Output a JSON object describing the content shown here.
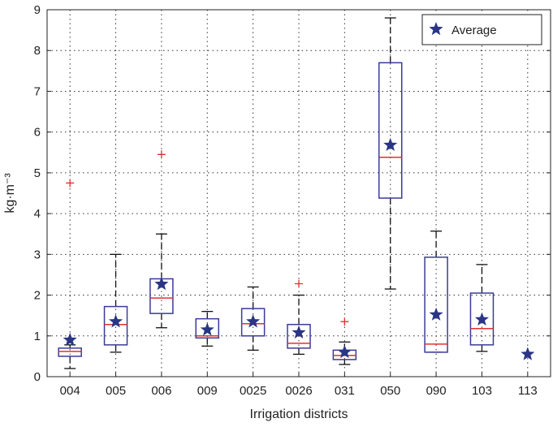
{
  "chart_data": {
    "type": "box",
    "title": "",
    "xlabel": "Irrigation districts",
    "ylabel": "kg·m⁻³",
    "ylim": [
      0,
      9
    ],
    "yticks": [
      "0",
      "1",
      "2",
      "3",
      "4",
      "5",
      "6",
      "7",
      "8",
      "9"
    ],
    "grid": true,
    "legend": {
      "placement": "top-right",
      "entries": [
        "Average"
      ]
    },
    "categories": [
      "004",
      "005",
      "006",
      "009",
      "0025",
      "0026",
      "031",
      "050",
      "090",
      "103",
      "113"
    ],
    "boxes": [
      {
        "min": 0.2,
        "q1": 0.5,
        "median": 0.62,
        "q3": 0.7,
        "max": 0.78,
        "mean": 0.9,
        "outliers": [
          4.75
        ]
      },
      {
        "min": 0.6,
        "q1": 0.78,
        "median": 1.28,
        "q3": 1.72,
        "max": 3.0,
        "mean": 1.35,
        "outliers": []
      },
      {
        "min": 1.2,
        "q1": 1.55,
        "median": 1.93,
        "q3": 2.4,
        "max": 3.5,
        "mean": 2.27,
        "outliers": [
          5.45
        ]
      },
      {
        "min": 0.75,
        "q1": 0.95,
        "median": 1.0,
        "q3": 1.42,
        "max": 1.6,
        "mean": 1.15,
        "outliers": []
      },
      {
        "min": 0.65,
        "q1": 1.0,
        "median": 1.3,
        "q3": 1.67,
        "max": 2.2,
        "mean": 1.35,
        "outliers": []
      },
      {
        "min": 0.55,
        "q1": 0.7,
        "median": 0.82,
        "q3": 1.28,
        "max": 2.0,
        "mean": 1.08,
        "outliers": [
          2.28
        ]
      },
      {
        "min": 0.3,
        "q1": 0.42,
        "median": 0.52,
        "q3": 0.65,
        "max": 0.85,
        "mean": 0.6,
        "outliers": [
          1.35
        ]
      },
      {
        "min": 2.15,
        "q1": 4.38,
        "median": 5.38,
        "q3": 7.7,
        "max": 8.8,
        "mean": 5.68,
        "outliers": []
      },
      {
        "min": 0.6,
        "q1": 0.6,
        "median": 0.8,
        "q3": 2.93,
        "max": 3.57,
        "mean": 1.52,
        "outliers": []
      },
      {
        "min": 0.62,
        "q1": 0.78,
        "median": 1.18,
        "q3": 2.05,
        "max": 2.75,
        "mean": 1.4,
        "outliers": []
      },
      {
        "min": null,
        "q1": null,
        "median": null,
        "q3": null,
        "max": null,
        "mean": 0.55,
        "outliers": []
      }
    ],
    "colors": {
      "box": "#3b3b9a",
      "median": "#e03030",
      "whisker": "#111111",
      "outlier": "#e03030",
      "mean": "#2a3585"
    }
  }
}
